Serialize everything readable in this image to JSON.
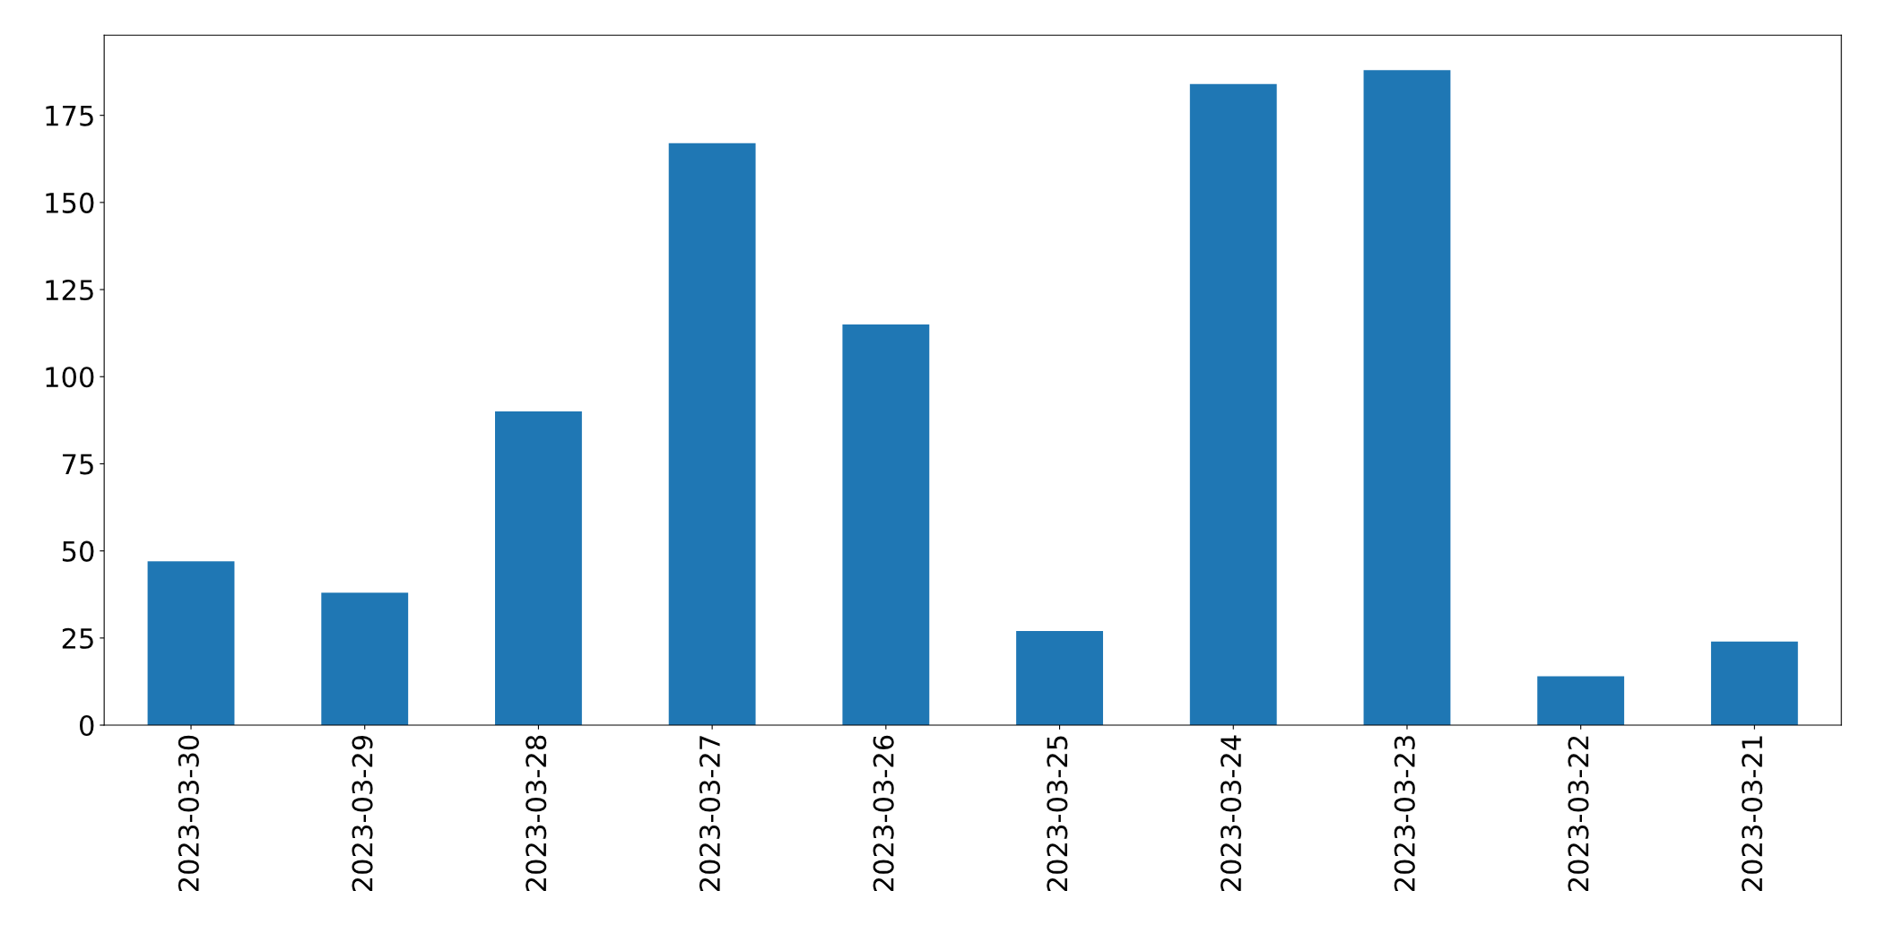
{
  "chart_data": {
    "type": "bar",
    "categories": [
      "2023-03-30",
      "2023-03-29",
      "2023-03-28",
      "2023-03-27",
      "2023-03-26",
      "2023-03-25",
      "2023-03-24",
      "2023-03-23",
      "2023-03-22",
      "2023-03-21"
    ],
    "values": [
      47,
      38,
      90,
      167,
      115,
      27,
      184,
      188,
      14,
      24
    ],
    "color": "#1f77b4",
    "ylim": [
      0,
      198
    ],
    "yticks": [
      0,
      25,
      50,
      75,
      100,
      125,
      150,
      175
    ],
    "grid": false,
    "legend": false
  }
}
